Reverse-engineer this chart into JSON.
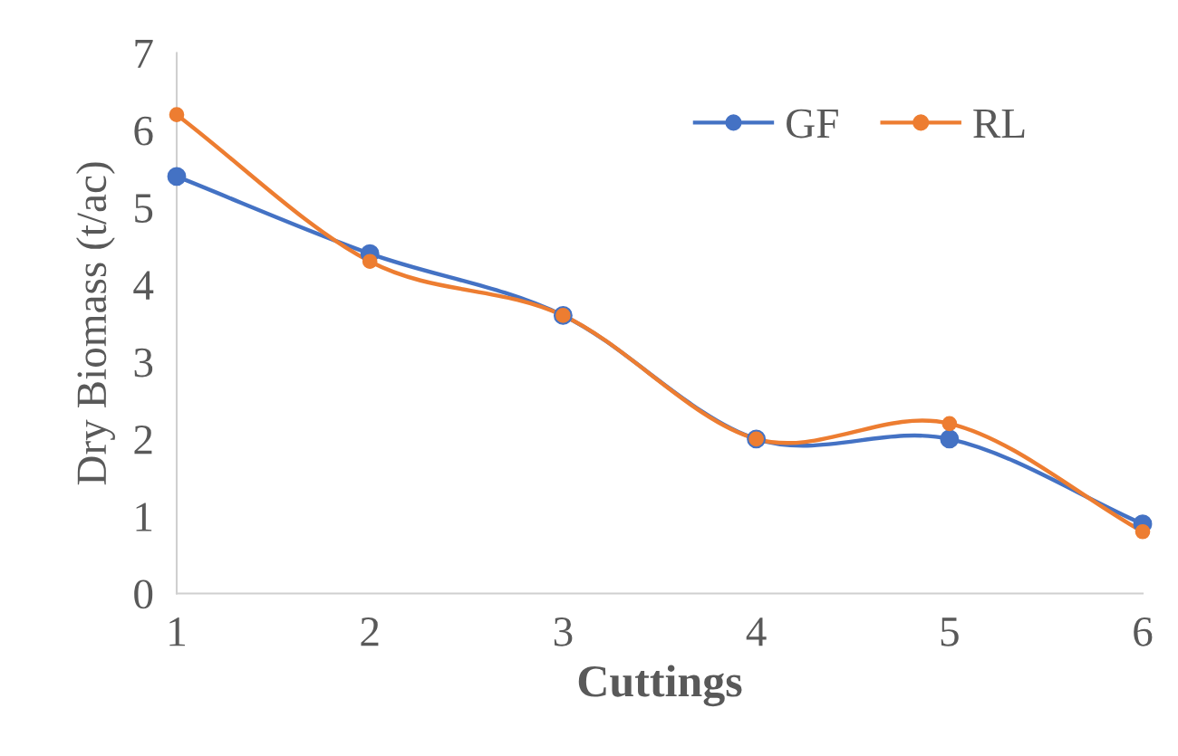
{
  "chart_data": {
    "type": "line",
    "xlabel": "Cuttings",
    "ylabel": "Dry Biomass (t/ac)",
    "categories": [
      "1",
      "2",
      "3",
      "4",
      "5",
      "6"
    ],
    "series": [
      {
        "name": "GF",
        "color": "#4472c4",
        "values": [
          5.4,
          4.4,
          3.6,
          2.0,
          2.0,
          0.9
        ]
      },
      {
        "name": "RL",
        "color": "#ed7d31",
        "values": [
          6.2,
          4.3,
          3.6,
          2.0,
          2.2,
          0.8
        ]
      }
    ],
    "ylim": [
      0,
      7
    ],
    "yticks": [
      0,
      1,
      2,
      3,
      4,
      5,
      6,
      7
    ],
    "grid": false,
    "legend": "top right",
    "marker": "circle",
    "line_style": "solid"
  }
}
